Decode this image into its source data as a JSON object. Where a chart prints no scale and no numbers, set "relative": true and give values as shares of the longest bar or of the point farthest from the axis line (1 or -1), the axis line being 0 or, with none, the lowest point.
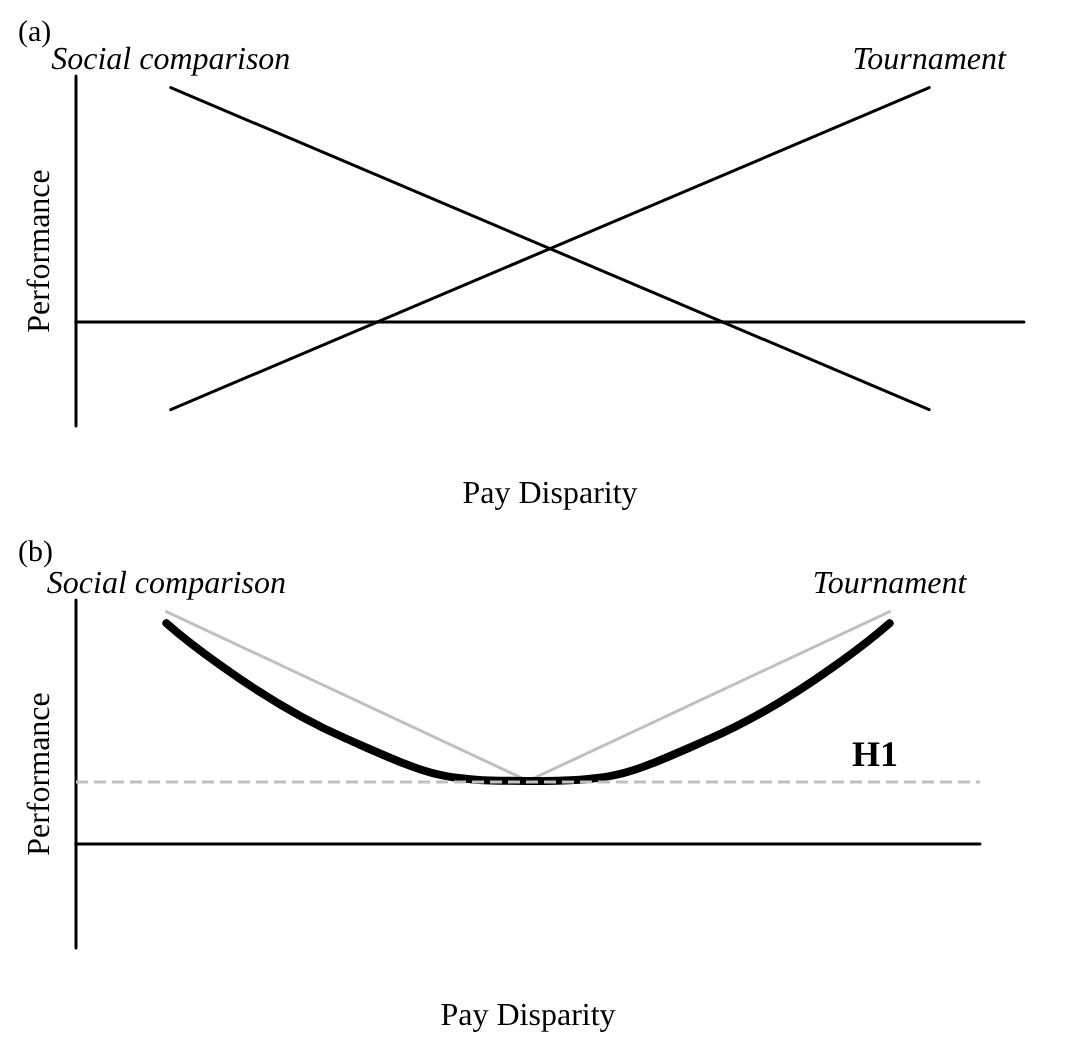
{
  "chart_data": [
    {
      "type": "line",
      "title": "(a)",
      "xlabel": "Pay Disparity",
      "ylabel": "Performance",
      "relative": true,
      "marker": "none",
      "categories": [
        null,
        null,
        null,
        null,
        null
      ],
      "series": [
        {
          "name": "Social comparison",
          "color": "#000000",
          "values": [
            1,
            null,
            null,
            null,
            -0.38
          ]
        },
        {
          "name": "Tournament",
          "color": "#000000",
          "values": [
            -0.38,
            null,
            null,
            null,
            1
          ]
        }
      ]
    },
    {
      "type": "line",
      "title": "(b)",
      "xlabel": "Pay Disparity",
      "ylabel": "Performance",
      "relative": true,
      "marker": "none",
      "categories": [
        null,
        null,
        null,
        null,
        null
      ],
      "series": [
        {
          "name": "Social comparison",
          "color": "#c0c0c0",
          "values": [
            1,
            null,
            0.27,
            null,
            null
          ]
        },
        {
          "name": "Tournament",
          "color": "#c0c0c0",
          "values": [
            null,
            null,
            0.27,
            null,
            1
          ]
        },
        {
          "color": "#000000",
          "values": [
            0.95,
            0.45,
            0.27,
            0.45,
            0.95
          ]
        }
      ],
      "ref_lines": [
        {
          "axis": "y",
          "value": 0.27,
          "color": "#c0c0c0",
          "line_style": "dashed"
        }
      ],
      "annotations": [
        "H1"
      ]
    }
  ]
}
